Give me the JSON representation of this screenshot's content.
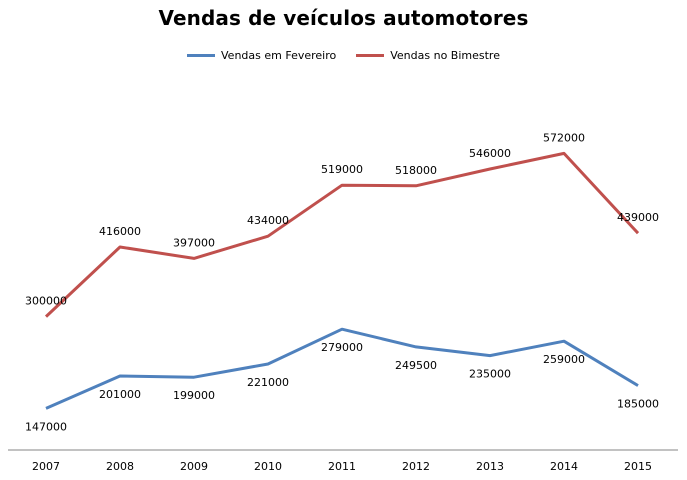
{
  "chart_data": {
    "type": "line",
    "title": "Vendas de veículos automotores",
    "categories": [
      "2007",
      "2008",
      "2009",
      "2010",
      "2011",
      "2012",
      "2013",
      "2014",
      "2015"
    ],
    "series": [
      {
        "name": "Vendas em Fevereiro",
        "color": "#4f81bd",
        "values": [
          147000,
          201000,
          199000,
          221000,
          279000,
          249500,
          235000,
          259000,
          185000
        ],
        "labels": [
          "147000",
          "201000",
          "199000",
          "221000",
          "279000",
          "249500",
          "235000",
          "259000",
          "185000"
        ],
        "label_position": "below"
      },
      {
        "name": "Vendas no Bimestre",
        "color": "#c0504d",
        "values": [
          300000,
          416000,
          397000,
          434000,
          519000,
          518000,
          546000,
          572000,
          439000
        ],
        "labels": [
          "300000",
          "416000",
          "397000",
          "434000",
          "519000",
          "518000",
          "546000",
          "572000",
          "439000"
        ],
        "label_position": "above"
      }
    ],
    "ylim": [
      0,
      700000
    ],
    "grid": false,
    "legend_position": "top"
  }
}
